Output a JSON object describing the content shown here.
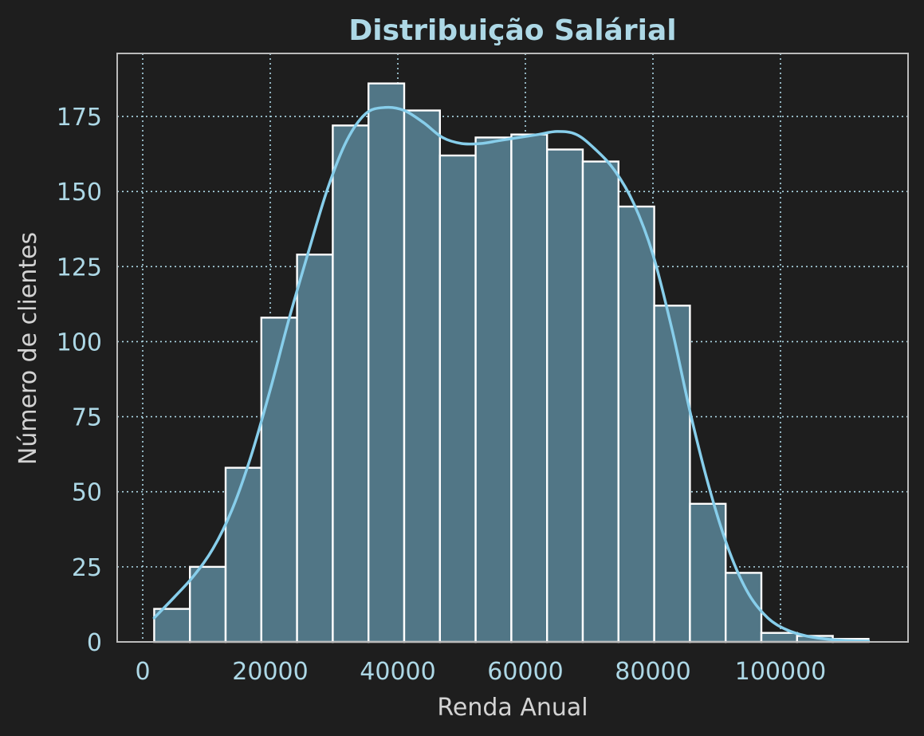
{
  "chart_data": {
    "type": "bar",
    "subtype": "histogram-with-kde",
    "title": "Distribuição Salárial",
    "xlabel": "Renda Anual",
    "ylabel": "Número de clientes",
    "xlim": [
      -4000,
      120000
    ],
    "ylim": [
      0,
      196
    ],
    "xticks": [
      0,
      20000,
      40000,
      60000,
      80000,
      100000
    ],
    "yticks": [
      0,
      25,
      50,
      75,
      100,
      125,
      150,
      175
    ],
    "grid": true,
    "bins": [
      {
        "x0": 1800,
        "x1": 7400,
        "count": 11
      },
      {
        "x0": 7400,
        "x1": 13000,
        "count": 25
      },
      {
        "x0": 13000,
        "x1": 18600,
        "count": 58
      },
      {
        "x0": 18600,
        "x1": 24200,
        "count": 108
      },
      {
        "x0": 24200,
        "x1": 29800,
        "count": 129
      },
      {
        "x0": 29800,
        "x1": 35400,
        "count": 172
      },
      {
        "x0": 35400,
        "x1": 41000,
        "count": 186
      },
      {
        "x0": 41000,
        "x1": 46600,
        "count": 177
      },
      {
        "x0": 46600,
        "x1": 52200,
        "count": 162
      },
      {
        "x0": 52200,
        "x1": 57800,
        "count": 168
      },
      {
        "x0": 57800,
        "x1": 63400,
        "count": 169
      },
      {
        "x0": 63400,
        "x1": 69000,
        "count": 164
      },
      {
        "x0": 69000,
        "x1": 74600,
        "count": 160
      },
      {
        "x0": 74600,
        "x1": 80200,
        "count": 145
      },
      {
        "x0": 80200,
        "x1": 85800,
        "count": 112
      },
      {
        "x0": 85800,
        "x1": 91400,
        "count": 46
      },
      {
        "x0": 91400,
        "x1": 97000,
        "count": 23
      },
      {
        "x0": 97000,
        "x1": 102600,
        "count": 3
      },
      {
        "x0": 102600,
        "x1": 108200,
        "count": 2
      },
      {
        "x0": 108200,
        "x1": 113800,
        "count": 1
      }
    ],
    "kde": {
      "x": [
        1800,
        5000,
        8000,
        11000,
        14000,
        17000,
        20000,
        23000,
        26000,
        29000,
        32000,
        35000,
        38000,
        41000,
        44000,
        47000,
        50000,
        53000,
        56000,
        59000,
        62000,
        65000,
        68000,
        71000,
        74000,
        77000,
        80000,
        83000,
        86000,
        89000,
        92000,
        95000,
        98000,
        101000,
        104000,
        107000,
        110000,
        113800
      ],
      "y": [
        8,
        15,
        22,
        31,
        44,
        62,
        84,
        108,
        130,
        151,
        167,
        176,
        178,
        177,
        173,
        168,
        166,
        166,
        167,
        168,
        169,
        170,
        169,
        164,
        157,
        146,
        129,
        104,
        75,
        50,
        30,
        16,
        8,
        4,
        2,
        1,
        0.5,
        0.3
      ]
    },
    "colors": {
      "background": "#1e1e1e",
      "bar_fill": "#517686",
      "bar_edge": "#ffffff",
      "kde_line": "#87ceeb",
      "grid": "#add8e6",
      "axes_edge": "#bbbbbb",
      "title": "#add8e6",
      "axis_label": "#d3d3d3",
      "tick_label": "#add8e6"
    }
  }
}
